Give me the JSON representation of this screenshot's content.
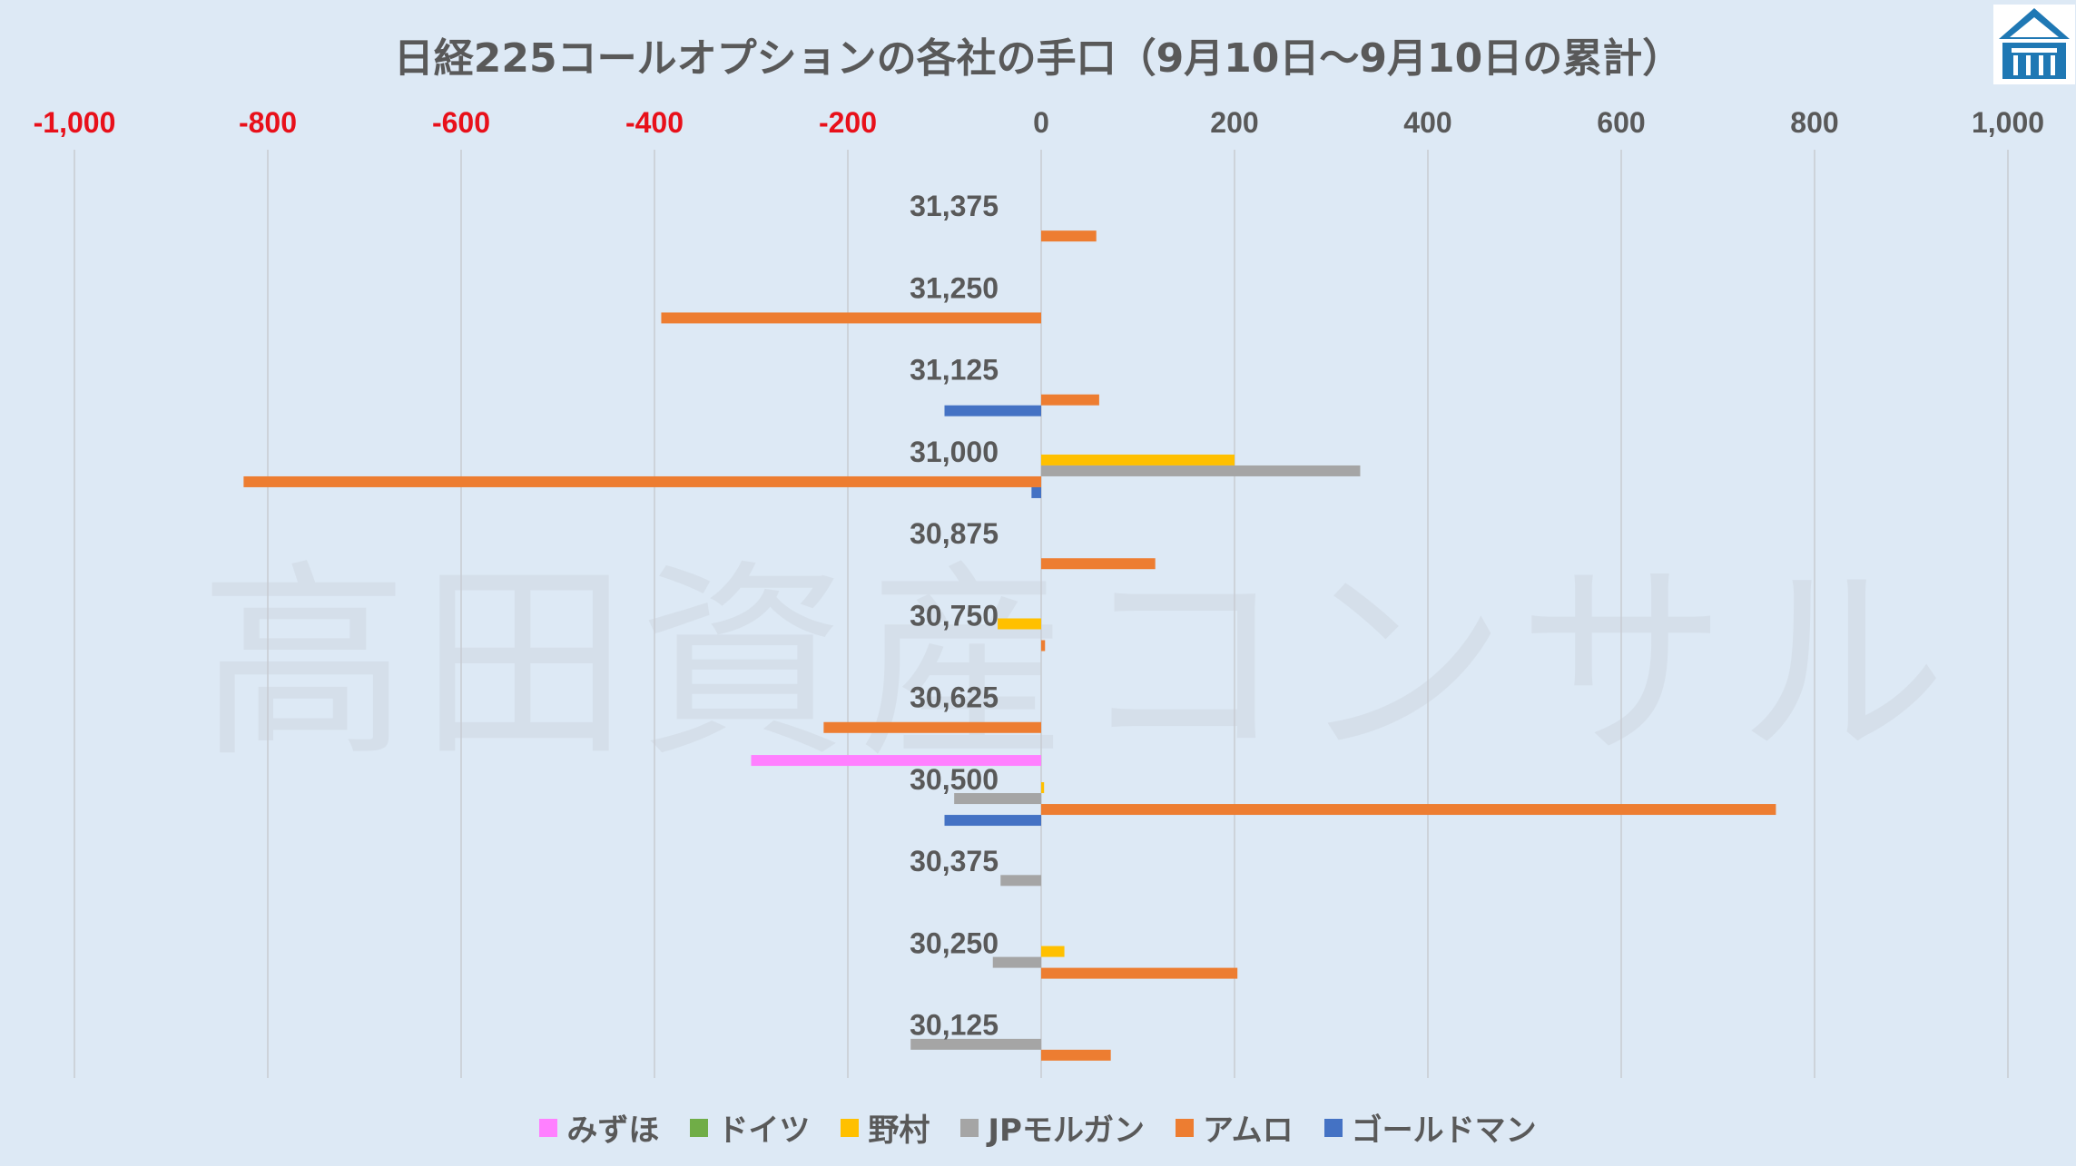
{
  "watermark": "高田資産コンサル",
  "colors": {
    "axis_negative": "#e8101a",
    "axis_positive": "#595959",
    "grid": "#c8ccd2",
    "background": "#dde9f5"
  },
  "chart_data": {
    "type": "bar",
    "orientation": "horizontal",
    "title": "日経225コールオプションの各社の手口（9月10日～9月10日の累計）",
    "xlim": [
      -1000,
      1000
    ],
    "xticks": [
      -1000,
      -800,
      -600,
      -400,
      -200,
      0,
      200,
      400,
      600,
      800,
      1000
    ],
    "xtick_labels": [
      "-1,000",
      "-800",
      "-600",
      "-400",
      "-200",
      "0",
      "200",
      "400",
      "600",
      "800",
      "1,000"
    ],
    "grid": true,
    "legend_position": "bottom",
    "categories": [
      "31,375",
      "31,250",
      "31,125",
      "31,000",
      "30,875",
      "30,750",
      "30,625",
      "30,500",
      "30,375",
      "30,250",
      "30,125"
    ],
    "series": [
      {
        "name": "みずほ",
        "color": "#ff80ff",
        "values": [
          0,
          0,
          0,
          0,
          0,
          0,
          0,
          -300,
          0,
          0,
          0
        ]
      },
      {
        "name": "ドイツ",
        "color": "#70ad47",
        "values": [
          0,
          0,
          0,
          0,
          0,
          0,
          0,
          0,
          0,
          0,
          0
        ]
      },
      {
        "name": "野村",
        "color": "#ffc000",
        "values": [
          0,
          0,
          0,
          200,
          0,
          -45,
          0,
          3,
          0,
          24,
          0
        ]
      },
      {
        "name": "JPモルガン",
        "color": "#a5a5a5",
        "values": [
          0,
          0,
          0,
          330,
          0,
          0,
          0,
          -90,
          -42,
          -50,
          -135
        ]
      },
      {
        "name": "アムロ",
        "color": "#ed7d31",
        "values": [
          57,
          -393,
          60,
          -825,
          118,
          4,
          -225,
          760,
          0,
          203,
          72
        ]
      },
      {
        "name": "ゴールドマン",
        "color": "#4472c4",
        "values": [
          0,
          0,
          -100,
          -10,
          0,
          0,
          0,
          -100,
          0,
          0,
          0
        ]
      }
    ]
  }
}
